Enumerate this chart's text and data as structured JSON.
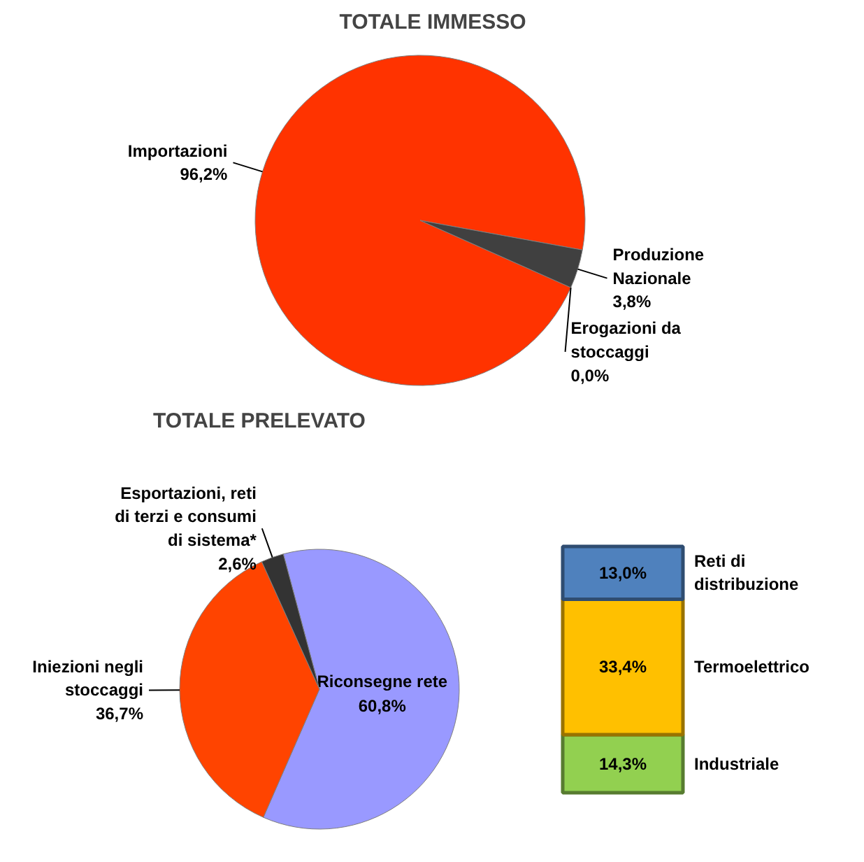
{
  "chart_data": [
    {
      "type": "pie",
      "title": "TOTALE IMMESSO",
      "categories": [
        "Importazioni",
        "Produzione Nazionale",
        "Erogazioni da stoccaggi"
      ],
      "values": [
        96.2,
        3.8,
        0.0
      ],
      "colors": [
        "#ff3300",
        "#404040",
        "#404040"
      ],
      "value_labels": [
        "96,2%",
        "3,8%",
        "0,0%"
      ]
    },
    {
      "type": "pie",
      "title": "TOTALE PRELEVATO",
      "categories": [
        "Riconsegne rete",
        "Iniezioni negli stoccaggi",
        "Esportazioni, reti di terzi e consumi di sistema*"
      ],
      "values": [
        60.8,
        36.7,
        2.6
      ],
      "colors": [
        "#9999ff",
        "#ff4400",
        "#333333"
      ],
      "value_labels": [
        "60,8%",
        "36,7%",
        "2,6%"
      ]
    },
    {
      "type": "bar",
      "stacked": true,
      "categories": [
        null
      ],
      "series": [
        {
          "name": "Industriale",
          "color": "#92d050",
          "values": [
            14.3
          ],
          "value_labels": [
            "14,3%"
          ]
        },
        {
          "name": "Termoelettrico",
          "color": "#ffc000",
          "values": [
            33.4
          ],
          "value_labels": [
            "33,4%"
          ]
        },
        {
          "name": "Reti di distribuzione",
          "color": "#4f81bd",
          "values": [
            13.0
          ],
          "value_labels": [
            "13,0%"
          ]
        }
      ]
    }
  ]
}
